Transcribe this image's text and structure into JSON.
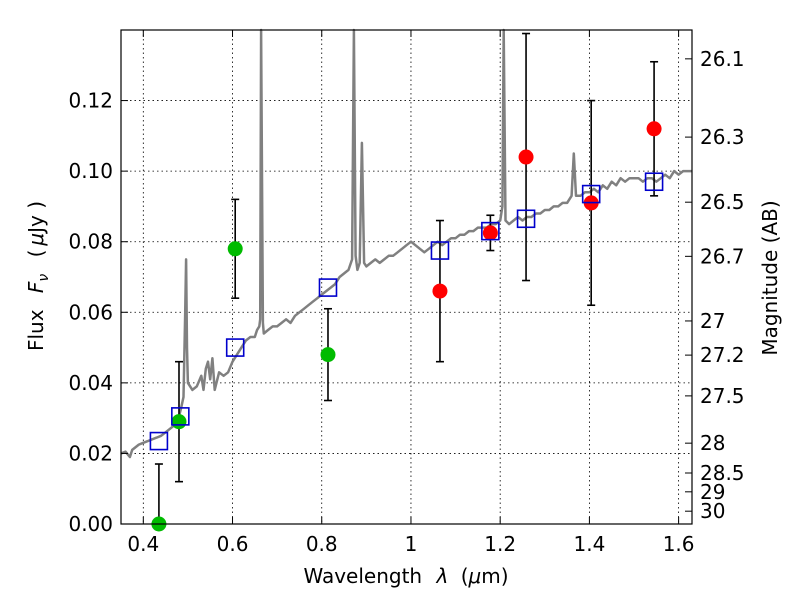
{
  "chart_data": {
    "type": "scatter",
    "xlabel_prefix": "Wavelength",
    "xlabel_symbol": "λ",
    "xlabel_units_open": "(",
    "xlabel_units_mu": "μ",
    "xlabel_units_rest": "m)",
    "ylabel_prefix": "Flux",
    "ylabel_symbol": "F",
    "ylabel_subscript": "ν",
    "ylabel_units_open": "(",
    "ylabel_units_mu": "μ",
    "ylabel_units_rest": "Jy )",
    "y2label": "Magnitude (AB)",
    "xlim": [
      0.35,
      1.63
    ],
    "ylim": [
      0.0,
      0.14
    ],
    "grid": true,
    "x_ticks": [
      {
        "v": 0.4,
        "label": "0.4"
      },
      {
        "v": 0.6,
        "label": "0.6"
      },
      {
        "v": 0.8,
        "label": "0.8"
      },
      {
        "v": 1.0,
        "label": "1"
      },
      {
        "v": 1.2,
        "label": "1.2"
      },
      {
        "v": 1.4,
        "label": "1.4"
      },
      {
        "v": 1.6,
        "label": "1.6"
      }
    ],
    "y_ticks": [
      {
        "v": 0.0,
        "label": "0.00"
      },
      {
        "v": 0.02,
        "label": "0.02"
      },
      {
        "v": 0.04,
        "label": "0.04"
      },
      {
        "v": 0.06,
        "label": "0.06"
      },
      {
        "v": 0.08,
        "label": "0.08"
      },
      {
        "v": 0.1,
        "label": "0.10"
      },
      {
        "v": 0.12,
        "label": "0.12"
      }
    ],
    "mag_ticks": [
      {
        "mag": 26.1,
        "label": "26.1"
      },
      {
        "mag": 26.3,
        "label": "26.3"
      },
      {
        "mag": 26.5,
        "label": "26.5"
      },
      {
        "mag": 26.7,
        "label": "26.7"
      },
      {
        "mag": 27.0,
        "label": "27"
      },
      {
        "mag": 27.2,
        "label": "27.2"
      },
      {
        "mag": 27.5,
        "label": "27.5"
      },
      {
        "mag": 28.0,
        "label": "28"
      },
      {
        "mag": 28.5,
        "label": "28.5"
      },
      {
        "mag": 29.0,
        "label": "29"
      },
      {
        "mag": 30.0,
        "label": "30"
      }
    ],
    "series": [
      {
        "name": "green-points",
        "color": "#00bb00",
        "marker": "circle",
        "points": [
          {
            "x": 0.435,
            "y": 0.0,
            "err": 0.017
          },
          {
            "x": 0.48,
            "y": 0.029,
            "err": 0.017
          },
          {
            "x": 0.606,
            "y": 0.078,
            "err": 0.014
          },
          {
            "x": 0.814,
            "y": 0.048,
            "err": 0.013
          }
        ]
      },
      {
        "name": "red-points",
        "color": "#ff0000",
        "marker": "circle",
        "points": [
          {
            "x": 1.065,
            "y": 0.066,
            "err": 0.02
          },
          {
            "x": 1.178,
            "y": 0.0825,
            "err": 0.005
          },
          {
            "x": 1.258,
            "y": 0.104,
            "err": 0.035
          },
          {
            "x": 1.404,
            "y": 0.091,
            "err": 0.029
          },
          {
            "x": 1.545,
            "y": 0.112,
            "err": 0.019
          }
        ]
      },
      {
        "name": "model-squares",
        "color": "#0000cc",
        "marker": "square",
        "points": [
          {
            "x": 0.435,
            "y": 0.0235
          },
          {
            "x": 0.483,
            "y": 0.0305
          },
          {
            "x": 0.606,
            "y": 0.05
          },
          {
            "x": 0.814,
            "y": 0.067
          },
          {
            "x": 1.065,
            "y": 0.0775
          },
          {
            "x": 1.178,
            "y": 0.083
          },
          {
            "x": 1.258,
            "y": 0.0865
          },
          {
            "x": 1.404,
            "y": 0.0935
          },
          {
            "x": 1.545,
            "y": 0.097
          }
        ]
      }
    ],
    "spectrum": {
      "name": "model-spectrum",
      "color": "#808080",
      "points": [
        [
          0.35,
          0.02
        ],
        [
          0.36,
          0.0205
        ],
        [
          0.37,
          0.019
        ],
        [
          0.375,
          0.021
        ],
        [
          0.38,
          0.0215
        ],
        [
          0.39,
          0.0225
        ],
        [
          0.4,
          0.023
        ],
        [
          0.41,
          0.0235
        ],
        [
          0.42,
          0.024
        ],
        [
          0.43,
          0.0245
        ],
        [
          0.44,
          0.025
        ],
        [
          0.45,
          0.026
        ],
        [
          0.46,
          0.027
        ],
        [
          0.47,
          0.028
        ],
        [
          0.48,
          0.0305
        ],
        [
          0.485,
          0.033
        ],
        [
          0.49,
          0.036
        ],
        [
          0.494,
          0.06
        ],
        [
          0.496,
          0.075
        ],
        [
          0.498,
          0.05
        ],
        [
          0.5,
          0.04
        ],
        [
          0.51,
          0.038
        ],
        [
          0.52,
          0.039
        ],
        [
          0.53,
          0.042
        ],
        [
          0.535,
          0.038
        ],
        [
          0.54,
          0.044
        ],
        [
          0.545,
          0.046
        ],
        [
          0.55,
          0.041
        ],
        [
          0.555,
          0.047
        ],
        [
          0.56,
          0.038
        ],
        [
          0.57,
          0.043
        ],
        [
          0.58,
          0.042
        ],
        [
          0.59,
          0.043
        ],
        [
          0.6,
          0.046
        ],
        [
          0.61,
          0.048
        ],
        [
          0.62,
          0.05
        ],
        [
          0.63,
          0.052
        ],
        [
          0.64,
          0.053
        ],
        [
          0.65,
          0.053
        ],
        [
          0.655,
          0.055
        ],
        [
          0.66,
          0.056
        ],
        [
          0.662,
          0.058
        ],
        [
          0.664,
          0.14
        ],
        [
          0.668,
          0.057
        ],
        [
          0.67,
          0.054
        ],
        [
          0.68,
          0.055
        ],
        [
          0.69,
          0.056
        ],
        [
          0.7,
          0.056
        ],
        [
          0.71,
          0.057
        ],
        [
          0.72,
          0.058
        ],
        [
          0.73,
          0.057
        ],
        [
          0.74,
          0.059
        ],
        [
          0.75,
          0.06
        ],
        [
          0.76,
          0.061
        ],
        [
          0.77,
          0.062
        ],
        [
          0.78,
          0.063
        ],
        [
          0.79,
          0.064
        ],
        [
          0.8,
          0.065
        ],
        [
          0.81,
          0.066
        ],
        [
          0.82,
          0.067
        ],
        [
          0.83,
          0.068
        ],
        [
          0.84,
          0.07
        ],
        [
          0.85,
          0.071
        ],
        [
          0.86,
          0.072
        ],
        [
          0.868,
          0.075
        ],
        [
          0.872,
          0.14
        ],
        [
          0.876,
          0.076
        ],
        [
          0.88,
          0.072
        ],
        [
          0.885,
          0.074
        ],
        [
          0.89,
          0.108
        ],
        [
          0.895,
          0.074
        ],
        [
          0.9,
          0.073
        ],
        [
          0.91,
          0.074
        ],
        [
          0.92,
          0.075
        ],
        [
          0.93,
          0.074
        ],
        [
          0.94,
          0.075
        ],
        [
          0.95,
          0.076
        ],
        [
          0.96,
          0.076
        ],
        [
          0.97,
          0.077
        ],
        [
          0.98,
          0.078
        ],
        [
          0.99,
          0.079
        ],
        [
          1.0,
          0.08
        ],
        [
          1.01,
          0.079
        ],
        [
          1.02,
          0.078
        ],
        [
          1.03,
          0.077
        ],
        [
          1.04,
          0.078
        ],
        [
          1.05,
          0.079
        ],
        [
          1.06,
          0.08
        ],
        [
          1.07,
          0.079
        ],
        [
          1.08,
          0.08
        ],
        [
          1.09,
          0.081
        ],
        [
          1.1,
          0.081
        ],
        [
          1.11,
          0.082
        ],
        [
          1.12,
          0.082
        ],
        [
          1.13,
          0.083
        ],
        [
          1.14,
          0.083
        ],
        [
          1.15,
          0.084
        ],
        [
          1.16,
          0.084
        ],
        [
          1.17,
          0.084
        ],
        [
          1.18,
          0.085
        ],
        [
          1.19,
          0.085
        ],
        [
          1.2,
          0.086
        ],
        [
          1.205,
          0.09
        ],
        [
          1.208,
          0.14
        ],
        [
          1.212,
          0.086
        ],
        [
          1.22,
          0.085
        ],
        [
          1.23,
          0.086
        ],
        [
          1.24,
          0.087
        ],
        [
          1.25,
          0.086
        ],
        [
          1.26,
          0.087
        ],
        [
          1.27,
          0.087
        ],
        [
          1.28,
          0.088
        ],
        [
          1.29,
          0.088
        ],
        [
          1.3,
          0.089
        ],
        [
          1.31,
          0.089
        ],
        [
          1.32,
          0.09
        ],
        [
          1.33,
          0.09
        ],
        [
          1.34,
          0.091
        ],
        [
          1.35,
          0.091
        ],
        [
          1.36,
          0.093
        ],
        [
          1.365,
          0.105
        ],
        [
          1.37,
          0.093
        ],
        [
          1.38,
          0.093
        ],
        [
          1.39,
          0.094
        ],
        [
          1.4,
          0.094
        ],
        [
          1.41,
          0.095
        ],
        [
          1.42,
          0.094
        ],
        [
          1.43,
          0.096
        ],
        [
          1.44,
          0.095
        ],
        [
          1.45,
          0.097
        ],
        [
          1.46,
          0.096
        ],
        [
          1.47,
          0.098
        ],
        [
          1.48,
          0.097
        ],
        [
          1.49,
          0.098
        ],
        [
          1.5,
          0.098
        ],
        [
          1.51,
          0.098
        ],
        [
          1.52,
          0.097
        ],
        [
          1.53,
          0.098
        ],
        [
          1.54,
          0.098
        ],
        [
          1.55,
          0.097
        ],
        [
          1.56,
          0.098
        ],
        [
          1.57,
          0.099
        ],
        [
          1.58,
          0.098
        ],
        [
          1.59,
          0.1
        ],
        [
          1.6,
          0.099
        ],
        [
          1.61,
          0.1
        ],
        [
          1.62,
          0.1
        ],
        [
          1.63,
          0.1
        ]
      ]
    }
  }
}
